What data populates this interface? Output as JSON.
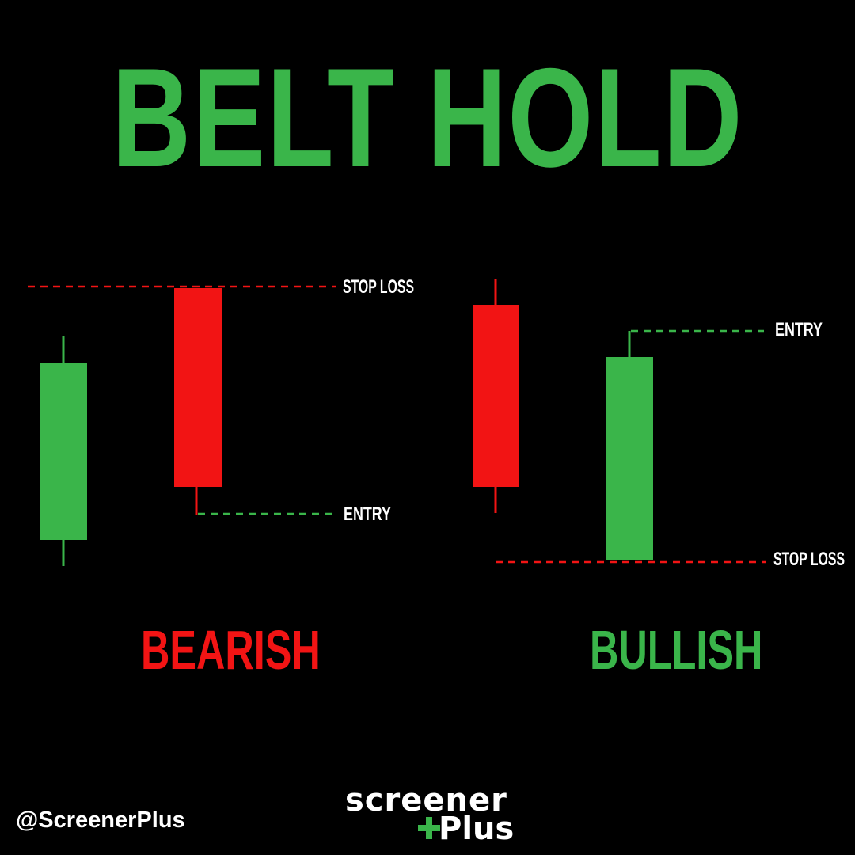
{
  "title": "BELT HOLD",
  "colors": {
    "bull": "#3ab54a",
    "bear": "#f21414",
    "background": "#000000",
    "text": "#ffffff"
  },
  "bearish": {
    "label": "BEARISH",
    "stop_loss_label": "STOP LOSS",
    "entry_label": "ENTRY",
    "candles": [
      "bullish",
      "bearish"
    ]
  },
  "bullish": {
    "label": "BULLISH",
    "entry_label": "ENTRY",
    "stop_loss_label": "STOP LOSS",
    "candles": [
      "bearish",
      "bullish"
    ]
  },
  "footer": {
    "handle": "@ScreenerPlus",
    "logo_top": "screener",
    "logo_bottom": "Plus"
  }
}
